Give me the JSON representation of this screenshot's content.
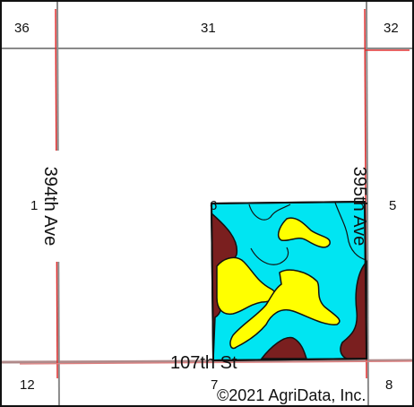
{
  "section_numbers": {
    "top_left": "36",
    "top_middle": "31",
    "top_right": "32",
    "mid_left": "1",
    "mid_field": "6",
    "mid_right": "5",
    "bottom_left": "12",
    "bottom_middle": "7",
    "bottom_right": "8"
  },
  "roads": {
    "west_avenue": "394th Ave",
    "east_avenue": "395th Ave",
    "south_street": "107th St"
  },
  "copyright": "©2021 AgriData, Inc.",
  "colors": {
    "soil_cyan": "#00e5f2",
    "soil_yellow": "#ffff00",
    "soil_maroon": "#7a1f1f",
    "road_red": "#e03030",
    "section_line_gray": "#8a8a8a",
    "road_pink": "#c99a9a"
  }
}
